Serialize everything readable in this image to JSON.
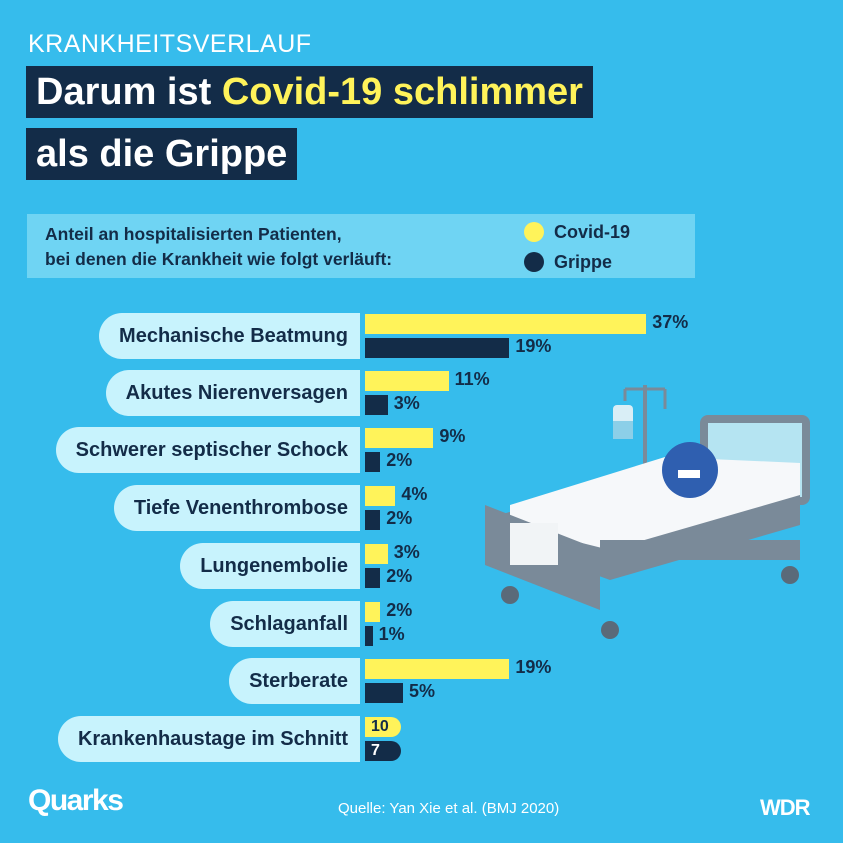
{
  "kicker": "KRANKHEITSVERLAUF",
  "title": {
    "part1": "Darum ist ",
    "highlight": "Covid-19 schlimmer",
    "line2": "als die Grippe"
  },
  "legend": {
    "description_line1": "Anteil an hospitalisierten Patienten,",
    "description_line2": "bei denen die Krankheit wie folgt verläuft:",
    "covid": "Covid-19",
    "grippe": "Grippe"
  },
  "colors": {
    "background": "#36bcec",
    "covid": "#fff35a",
    "grippe": "#132c48",
    "label_pill": "#c8f3fd"
  },
  "chart_data": {
    "type": "bar",
    "orientation": "horizontal",
    "categories": [
      "Mechanische Beatmung",
      "Akutes Nierenversagen",
      "Schwerer septischer Schock",
      "Tiefe Venenthrombose",
      "Lungenembolie",
      "Schlaganfall",
      "Sterberate",
      "Krankenhaustage im Schnitt"
    ],
    "series": [
      {
        "name": "Covid-19",
        "values": [
          37,
          11,
          9,
          4,
          3,
          2,
          19,
          10
        ],
        "labels": [
          "37%",
          "11%",
          "9%",
          "4%",
          "3%",
          "2%",
          "19%",
          "10"
        ]
      },
      {
        "name": "Grippe",
        "values": [
          19,
          3,
          2,
          2,
          2,
          1,
          5,
          7
        ],
        "labels": [
          "19%",
          "3%",
          "2%",
          "2%",
          "2%",
          "1%",
          "5%",
          "7"
        ]
      }
    ]
  },
  "footer": {
    "logo": "Quarks",
    "source": "Quelle: Yan Xie et al. (BMJ 2020)",
    "broadcaster": "WDR"
  }
}
